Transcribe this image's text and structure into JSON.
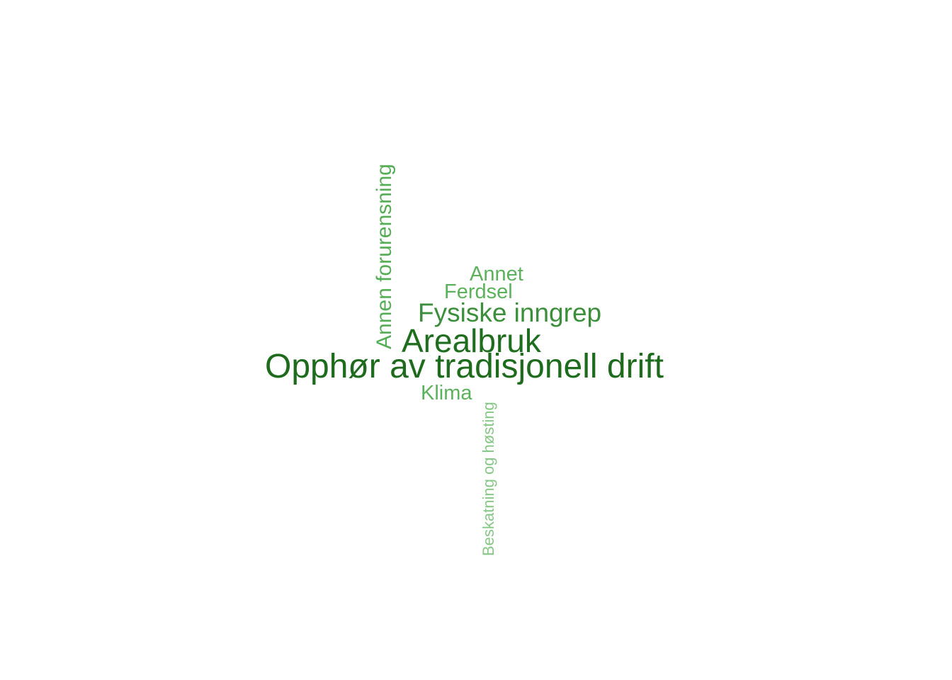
{
  "words": [
    {
      "text": "Opphør av tradisjonell drift",
      "color": "#1e6b1e"
    },
    {
      "text": "Arealbruk",
      "color": "#1f6e1f"
    },
    {
      "text": "Fysiske inngrep",
      "color": "#3b8f3b"
    },
    {
      "text": "Annen forurensning",
      "color": "#55ad55"
    },
    {
      "text": "Ferdsel",
      "color": "#5cb25c"
    },
    {
      "text": "Annet",
      "color": "#5cb25c"
    },
    {
      "text": "Klima",
      "color": "#5cb25c"
    },
    {
      "text": "Beskatning og høsting",
      "color": "#86c786"
    }
  ]
}
